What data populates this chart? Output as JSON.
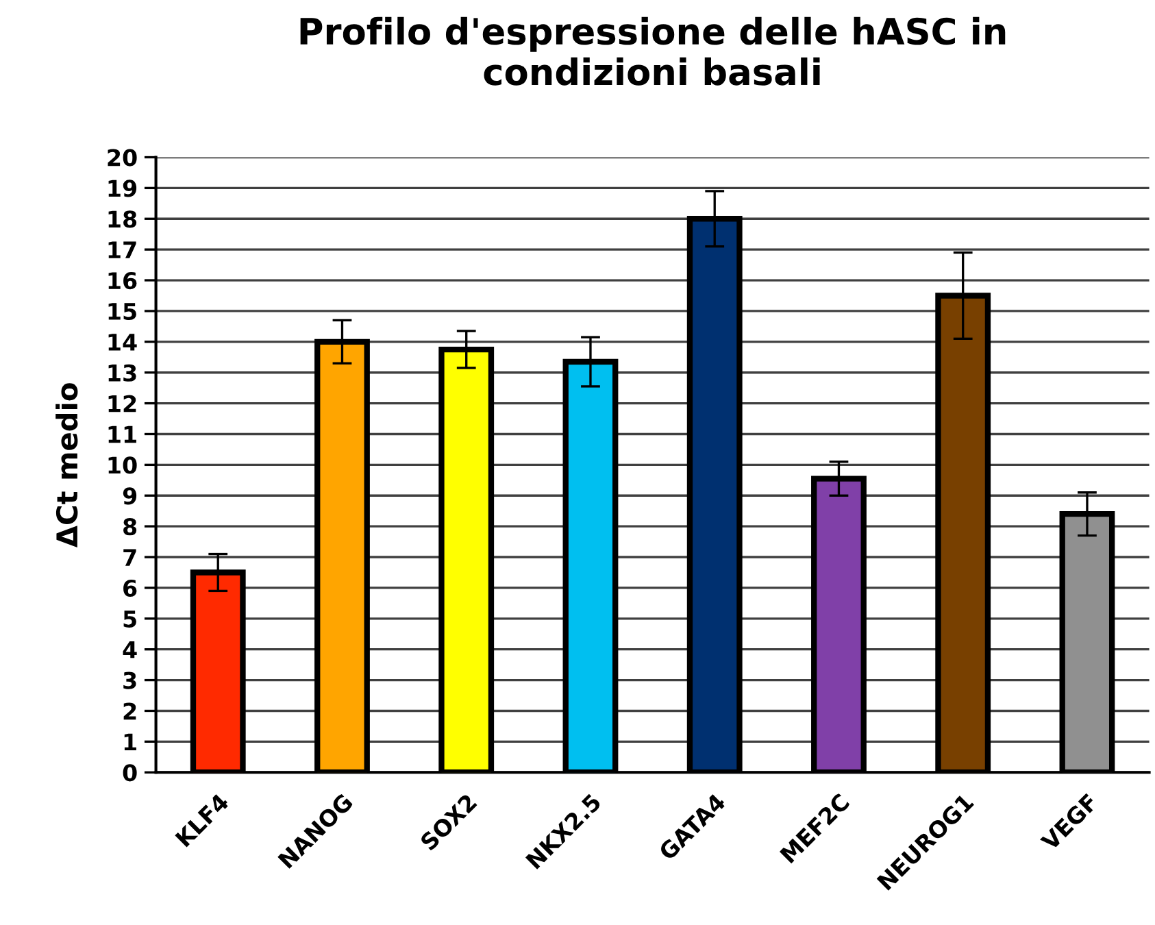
{
  "chart_data": {
    "type": "bar",
    "title": "Profilo d'espressione delle hASC in\ncondizioni basali",
    "ylabel": "ΔCt medio",
    "categories": [
      "KLF4",
      "NANOG",
      "SOX2",
      "NKX2.5",
      "GATA4",
      "MEF2C",
      "NEUROG1",
      "VEGF"
    ],
    "values": [
      6.5,
      14.0,
      13.75,
      13.35,
      18.0,
      9.55,
      15.5,
      8.4
    ],
    "errors": [
      0.6,
      0.7,
      0.6,
      0.8,
      0.9,
      0.55,
      1.4,
      0.7
    ],
    "colors": [
      "#ff2a00",
      "#ffa500",
      "#ffff00",
      "#00bff0",
      "#003070",
      "#8040a8",
      "#784000",
      "#909090"
    ],
    "ylim": [
      0,
      20
    ],
    "yticks": [
      0,
      1,
      2,
      3,
      4,
      5,
      6,
      7,
      8,
      9,
      10,
      11,
      12,
      13,
      14,
      15,
      16,
      17,
      18,
      19,
      20
    ],
    "grid": "y"
  }
}
